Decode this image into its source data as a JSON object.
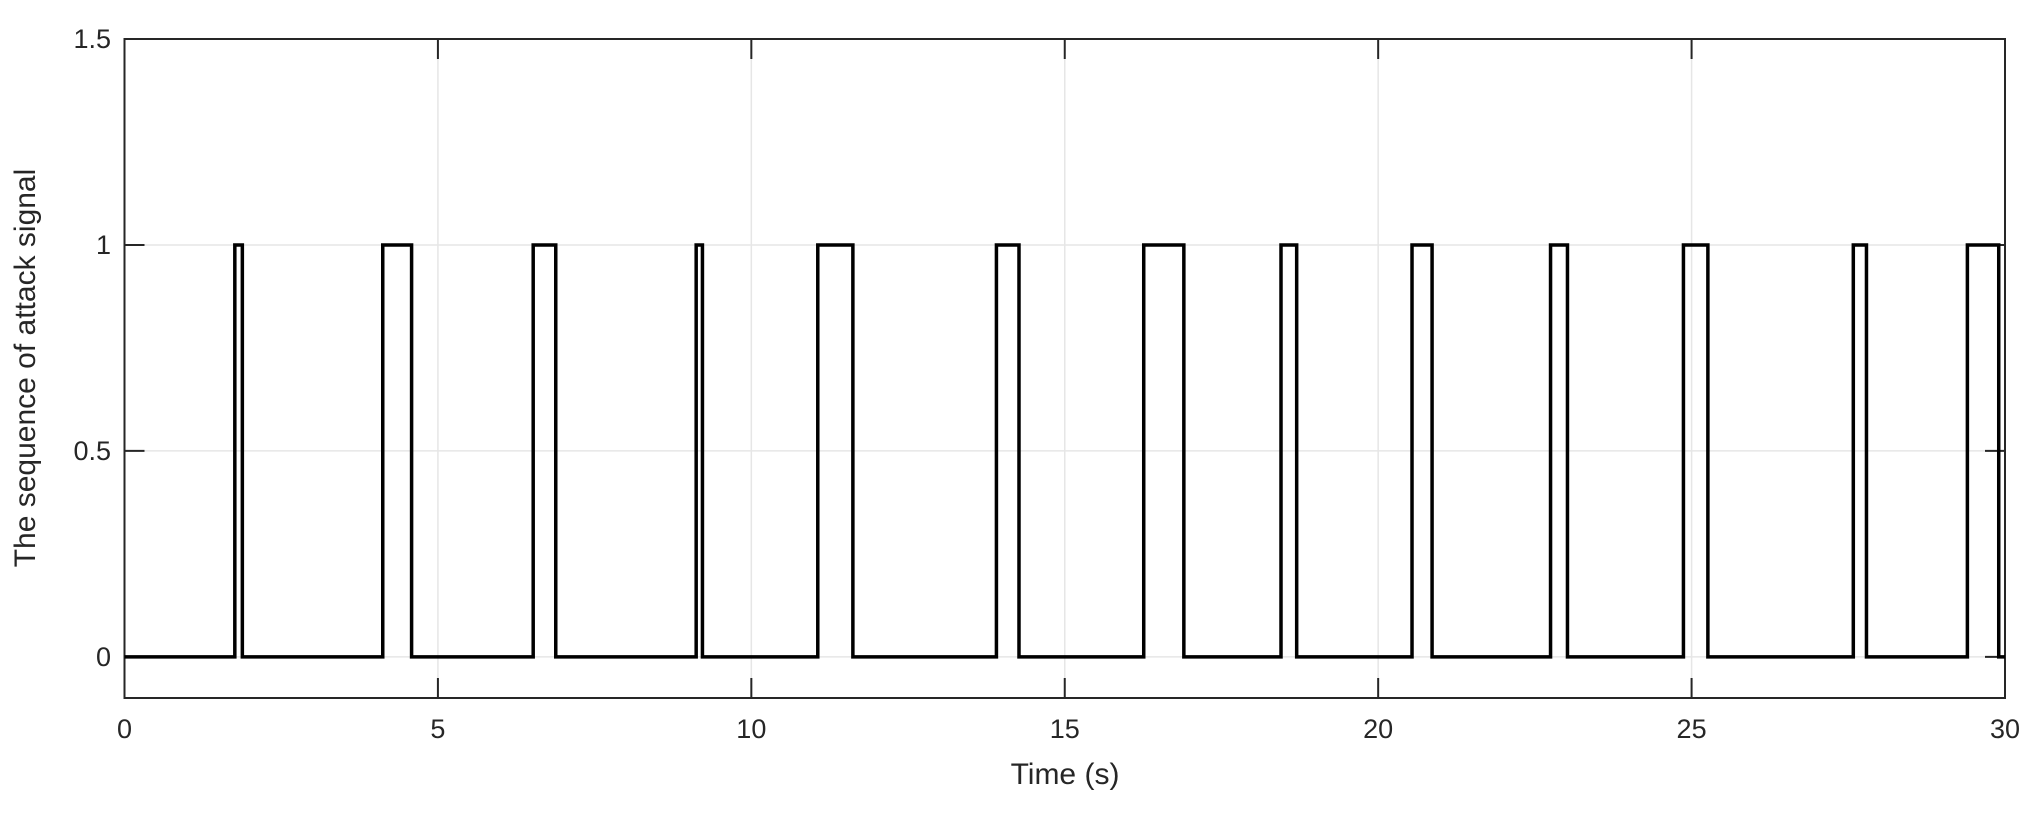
{
  "figure": {
    "background": "#ffffff",
    "axes_color": "#262626",
    "grid_color": "#e6e6e6",
    "line_color": "#000000",
    "line_width": 3.5,
    "spine_width": 2,
    "tick_length": 20
  },
  "chart_data": {
    "type": "line",
    "subtype": "pulse-train",
    "title": "",
    "xlabel": "Time (s)",
    "ylabel": "The sequence of attack signal",
    "xlim": [
      0,
      30
    ],
    "ylim": [
      -0.1,
      1.5
    ],
    "xticks": [
      0,
      5,
      10,
      15,
      20,
      25,
      30
    ],
    "yticks": [
      0,
      0.5,
      1,
      1.5
    ],
    "grid": true,
    "legend": null,
    "signal_low": 0,
    "signal_high": 1,
    "pulses": [
      {
        "on": 1.76,
        "off": 1.88
      },
      {
        "on": 4.12,
        "off": 4.58
      },
      {
        "on": 6.52,
        "off": 6.88
      },
      {
        "on": 9.12,
        "off": 9.22
      },
      {
        "on": 11.06,
        "off": 11.62
      },
      {
        "on": 13.91,
        "off": 14.27
      },
      {
        "on": 16.26,
        "off": 16.9
      },
      {
        "on": 18.45,
        "off": 18.7
      },
      {
        "on": 20.54,
        "off": 20.86
      },
      {
        "on": 22.75,
        "off": 23.02
      },
      {
        "on": 24.87,
        "off": 25.26
      },
      {
        "on": 27.58,
        "off": 27.79
      },
      {
        "on": 29.4,
        "off": 29.9
      }
    ]
  }
}
